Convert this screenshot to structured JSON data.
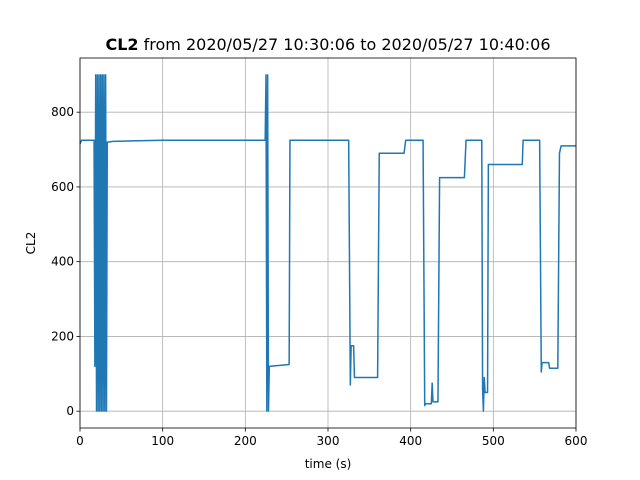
{
  "chart_data": {
    "type": "line",
    "title_bold": "CL2",
    "title": "from 2020/05/27 10:30:06 to 2020/05/27 10:40:06",
    "xlabel": "time (s)",
    "ylabel": "CL2",
    "x": [
      0,
      2,
      17,
      18,
      19,
      20,
      21,
      22,
      23,
      24,
      25,
      26,
      27,
      28,
      29,
      30,
      31,
      32,
      33,
      40,
      100,
      200,
      224,
      225,
      226,
      227,
      228,
      229,
      253,
      254,
      325,
      327,
      328,
      331,
      332,
      360,
      362,
      392,
      394,
      415,
      417,
      418,
      425,
      426,
      427,
      433,
      435,
      465,
      467,
      486,
      487,
      488,
      489,
      490,
      493,
      494,
      535,
      536,
      556,
      558,
      559,
      567,
      568,
      578,
      580,
      582,
      600
    ],
    "values": [
      715,
      725,
      725,
      120,
      900,
      0,
      900,
      0,
      900,
      0,
      900,
      0,
      900,
      0,
      900,
      0,
      900,
      0,
      720,
      722,
      725,
      725,
      725,
      900,
      0,
      900,
      0,
      120,
      125,
      725,
      725,
      70,
      175,
      175,
      90,
      90,
      690,
      690,
      725,
      725,
      15,
      20,
      20,
      75,
      25,
      25,
      625,
      625,
      725,
      725,
      60,
      0,
      90,
      50,
      50,
      660,
      660,
      725,
      725,
      105,
      130,
      130,
      115,
      115,
      690,
      710,
      710
    ],
    "color": "#1f77b4",
    "xlim": [
      0,
      600
    ],
    "xticks": [
      0,
      100,
      200,
      300,
      400,
      500,
      600
    ],
    "ylim": [
      -45,
      945
    ],
    "yticks": [
      0,
      200,
      400,
      600,
      800
    ],
    "grid": true
  }
}
